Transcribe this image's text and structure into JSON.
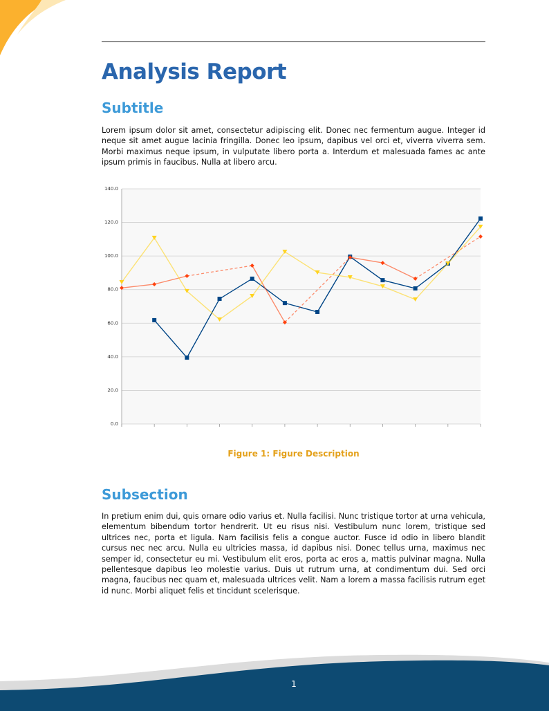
{
  "title": "Analysis Report",
  "sections": [
    {
      "heading": "Subtitle",
      "paragraph": "Lorem ipsum dolor sit amet, consectetur adipiscing elit. Donec nec fermentum augue. Integer id neque sit amet augue lacinia fringilla. Donec leo ipsum, dapibus vel orci et, viverra viverra sem. Morbi maximus neque ipsum, in vulputate libero porta a. Interdum et malesuada fames ac ante ipsum primis in faucibus. Nulla at libero arcu."
    },
    {
      "heading": "Subsection",
      "paragraph": "In pretium enim dui, quis ornare odio varius et. Nulla facilisi. Nunc tristique tortor at urna vehicula, elementum bibendum tortor hendrerit. Ut eu risus nisi. Vestibulum nunc lorem, tristique sed ultrices nec, porta et ligula. Nam facilisis felis a congue auctor. Fusce id odio in libero blandit cursus nec nec arcu. Nulla eu ultricies massa, id dapibus nisi. Donec tellus urna, maximus nec semper id, consectetur eu mi. Vestibulum elit eros, porta ac eros a, mattis pulvinar magna. Nulla pellentesque dapibus leo molestie varius. Duis ut rutrum urna, at condimentum dui. Sed orci magna, faucibus nec quam et, malesuada ultrices velit. Nam a lorem a massa facilisis rutrum eget id nunc. Morbi aliquet felis et tincidunt scelerisque."
    }
  ],
  "caption": "Figure 1: Figure Description",
  "page_number": 1,
  "chart_data": {
    "type": "line",
    "categories": [
      null,
      null,
      null,
      null,
      null,
      null,
      null,
      null,
      null,
      null,
      null,
      null
    ],
    "series": [
      {
        "color": "#004586",
        "marker": "square",
        "values": [
          null,
          61.8,
          39.5,
          74.5,
          86.5,
          72,
          66.7,
          99.6,
          85.6,
          80.7,
          95.5,
          122.3
        ]
      },
      {
        "color": "#ff420e",
        "marker": "diamond",
        "gap_style": "dashed",
        "values": [
          81,
          83.2,
          88.1,
          null,
          94.3,
          60.5,
          null,
          99.2,
          95.9,
          86.5,
          null,
          111.6
        ]
      },
      {
        "color": "#ffd320",
        "marker": "triangle-down",
        "values": [
          84.4,
          110.8,
          79.1,
          62.2,
          76.2,
          102.5,
          90.2,
          87.3,
          81.9,
          74.1,
          95.5,
          117.4
        ]
      }
    ],
    "ylim": [
      0,
      140
    ],
    "yticks": [
      {
        "value": 0,
        "label": "0.0"
      },
      {
        "value": 20,
        "label": "20.0"
      },
      {
        "value": 40,
        "label": "40.0"
      },
      {
        "value": 60,
        "label": "60.0"
      },
      {
        "value": 80,
        "label": "80.0"
      },
      {
        "value": 100,
        "label": "100.0"
      },
      {
        "value": 120,
        "label": "120.0"
      },
      {
        "value": 140,
        "label": "140.0"
      }
    ],
    "grid": true
  }
}
